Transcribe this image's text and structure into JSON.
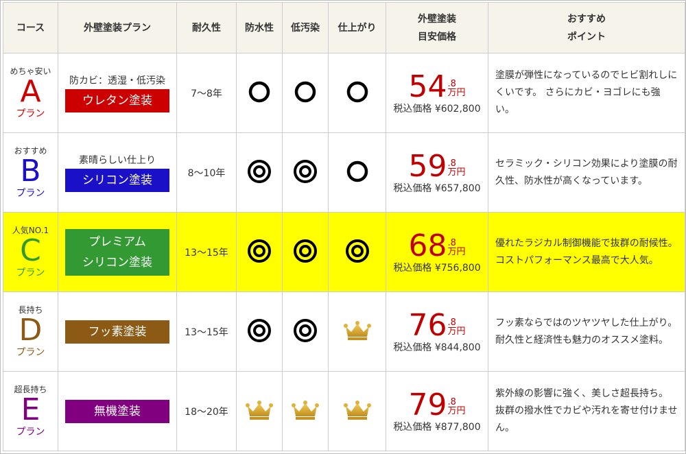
{
  "headers": {
    "course": "コース",
    "plan": "外壁塗装プラン",
    "durability": "耐久性",
    "waterproof": "防水性",
    "low_stain": "低汚染",
    "finish": "仕上がり",
    "price_line1": "外壁塗装",
    "price_line2": "目安価格",
    "point_line1": "おすすめ",
    "point_line2": "ポイント"
  },
  "colors": {
    "header_bg": "#f6f3ea",
    "highlight_row": "#ffff00",
    "price_red": "#c00000",
    "A": "#cc0000",
    "B": "#1a10c8",
    "C": "#339933",
    "D": "#8c5a14",
    "E": "#800080"
  },
  "rows": [
    {
      "tag": "めちゃ安い",
      "letter": "A",
      "plan_label": "プラン",
      "note": "防カビ：透湿・低汚染",
      "name": "ウレタン塗装",
      "years": "7〜8年",
      "marks": [
        "circle",
        "circle",
        "circle"
      ],
      "price_main": "54",
      "price_dec": ".8",
      "price_unit": "万円",
      "tax_label": "税込価格",
      "tax_price": "¥602,800",
      "point": "塗膜が弾性になっているのでヒビ割れしにくいです。 さらにカビ・ヨゴレにも強い。"
    },
    {
      "tag": "おすすめ",
      "letter": "B",
      "plan_label": "プラン",
      "note": "素晴らしい仕上り",
      "name": "シリコン塗装",
      "years": "8〜10年",
      "marks": [
        "double-circle",
        "double-circle",
        "circle"
      ],
      "price_main": "59",
      "price_dec": ".8",
      "price_unit": "万円",
      "tax_label": "税込価格",
      "tax_price": "¥657,800",
      "point": "セラミック・シリコン効果により塗膜の耐久性、防水性が高くなっています。"
    },
    {
      "tag": "人気NO.1",
      "letter": "C",
      "plan_label": "プラン",
      "note": "",
      "name_line1": "プレミアム",
      "name_line2": "シリコン塗装",
      "years": "13〜15年",
      "marks": [
        "double-circle",
        "double-circle",
        "double-circle"
      ],
      "price_main": "68",
      "price_dec": ".8",
      "price_unit": "万円",
      "tax_label": "税込価格",
      "tax_price": "¥756,800",
      "point": "優れたラジカル制御機能で抜群の耐候性。 コストパフォーマンス最高で大人気。"
    },
    {
      "tag": "長持ち",
      "letter": "D",
      "plan_label": "プラン",
      "note": "",
      "name": "フッ素塗装",
      "years": "13〜15年",
      "marks": [
        "double-circle",
        "double-circle",
        "crown"
      ],
      "price_main": "76",
      "price_dec": ".8",
      "price_unit": "万円",
      "tax_label": "税込価格",
      "tax_price": "¥844,800",
      "point": "フッ素ならではのツヤツヤした仕上がり。 耐久性と経済性も魅力のオススメ塗料。"
    },
    {
      "tag": "超長持ち",
      "letter": "E",
      "plan_label": "プラン",
      "note": "",
      "name": "無機塗装",
      "years": "18〜20年",
      "marks": [
        "crown",
        "crown",
        "crown"
      ],
      "price_main": "79",
      "price_dec": ".8",
      "price_unit": "万円",
      "tax_label": "税込価格",
      "tax_price": "¥877,800",
      "point": "紫外線の影響に強く、美しさ超長持ち。 抜群の撥水性でカビや汚れを寄せ付けません。"
    }
  ]
}
